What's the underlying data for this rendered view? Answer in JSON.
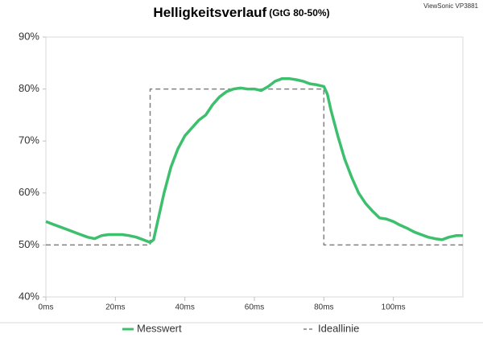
{
  "chart_data": {
    "type": "line",
    "title": "Helligkeitsverlauf",
    "subtitle": "(GtG 80-50%)",
    "source": "ViewSonic VP3881",
    "xlim": [
      0,
      120
    ],
    "xticks": [
      {
        "value": 0,
        "label": "0ms"
      },
      {
        "value": 20,
        "label": "20ms"
      },
      {
        "value": 40,
        "label": "40ms"
      },
      {
        "value": 60,
        "label": "60ms"
      },
      {
        "value": 80,
        "label": "80ms"
      },
      {
        "value": 100,
        "label": "100ms"
      }
    ],
    "ylim": [
      40,
      90
    ],
    "yticks": [
      {
        "value": 40,
        "label": "40%"
      },
      {
        "value": 50,
        "label": "50%"
      },
      {
        "value": 60,
        "label": "60%"
      },
      {
        "value": 70,
        "label": "70%"
      },
      {
        "value": 80,
        "label": "80%"
      },
      {
        "value": 90,
        "label": "90%"
      }
    ],
    "grid": false,
    "legend": "bottom",
    "series": [
      {
        "name": "Messwert",
        "color": "#3dbf6e",
        "dash": false,
        "x": [
          0,
          2,
          4,
          6,
          8,
          10,
          12,
          14,
          16,
          18,
          20,
          22,
          24,
          26,
          28,
          30,
          31,
          32,
          34,
          36,
          38,
          40,
          42,
          44,
          46,
          48,
          50,
          52,
          54,
          56,
          58,
          60,
          62,
          64,
          66,
          68,
          70,
          72,
          74,
          76,
          78,
          80,
          81,
          82,
          84,
          86,
          88,
          90,
          92,
          94,
          96,
          98,
          100,
          102,
          104,
          106,
          108,
          110,
          112,
          114,
          116,
          118,
          120
        ],
        "values": [
          54.5,
          54,
          53.5,
          53,
          52.5,
          52,
          51.5,
          51.2,
          51.8,
          52,
          52,
          52,
          51.8,
          51.5,
          51,
          50.5,
          51,
          54,
          60,
          65,
          68.5,
          71,
          72.5,
          74,
          75,
          77,
          78.5,
          79.5,
          80,
          80.2,
          80,
          80,
          79.7,
          80.5,
          81.5,
          82,
          82,
          81.8,
          81.5,
          81,
          80.8,
          80.5,
          79,
          76,
          71,
          66.5,
          63,
          60,
          58,
          56.5,
          55.2,
          55,
          54.5,
          53.8,
          53.2,
          52.5,
          52,
          51.5,
          51.2,
          51,
          51.5,
          51.8,
          51.8
        ]
      },
      {
        "name": "Ideallinie",
        "color": "#808080",
        "dash": true,
        "x": [
          0,
          30,
          30,
          80,
          80,
          120
        ],
        "values": [
          50,
          50,
          80,
          80,
          50,
          50
        ]
      }
    ]
  }
}
